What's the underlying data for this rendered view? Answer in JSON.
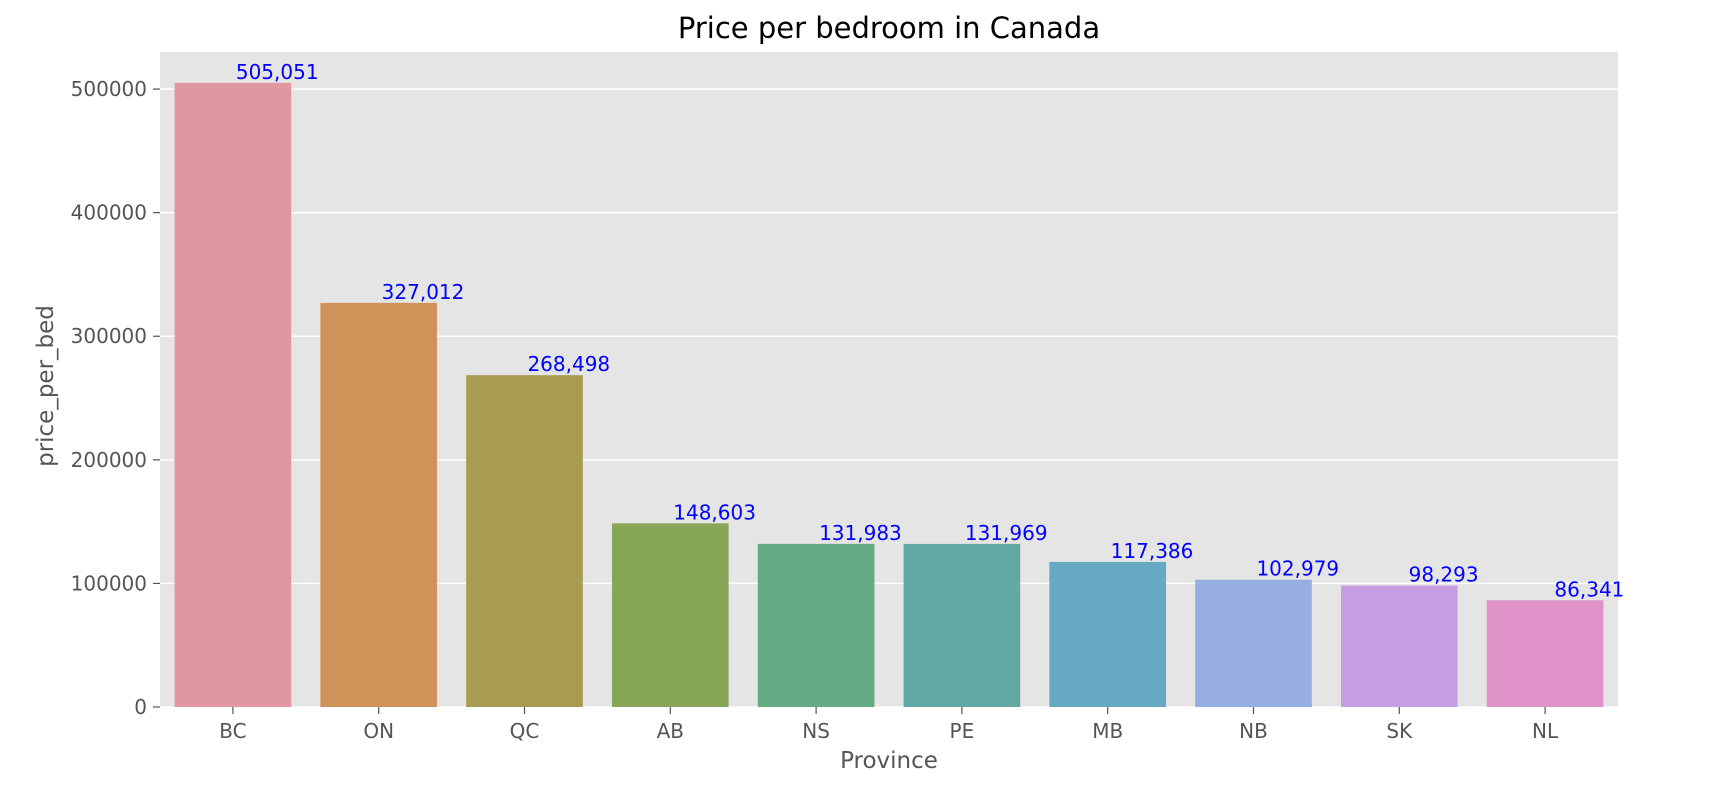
{
  "chart_data": {
    "type": "bar",
    "title": "Price per bedroom in Canada",
    "xlabel": "Province",
    "ylabel": "price_per_bed",
    "categories": [
      "BC",
      "ON",
      "QC",
      "AB",
      "NS",
      "PE",
      "MB",
      "NB",
      "SK",
      "NL"
    ],
    "values": [
      505051,
      327012,
      268498,
      148603,
      131983,
      131969,
      117386,
      102979,
      98293,
      86341
    ],
    "value_labels": [
      "505,051",
      "327,012",
      "268,498",
      "148,603",
      "131,983",
      "131,969",
      "117,386",
      "102,979",
      "98,293",
      "86,341"
    ],
    "bar_colors": [
      "#e0979f",
      "#cf935a",
      "#a89b52",
      "#87a657",
      "#64aa82",
      "#62a8a4",
      "#66a9c3",
      "#97aee2",
      "#c89ee3",
      "#de92c8"
    ],
    "ylim": [
      0,
      530000
    ],
    "yticks": [
      0,
      100000,
      200000,
      300000,
      400000,
      500000
    ],
    "ytick_labels": [
      "0",
      "100000",
      "200000",
      "300000",
      "400000",
      "500000"
    ],
    "grid": true,
    "style": "ggplot",
    "plot_background": "#e5e5e5",
    "grid_color": "#ffffff",
    "value_label_color": "#0000ff"
  }
}
